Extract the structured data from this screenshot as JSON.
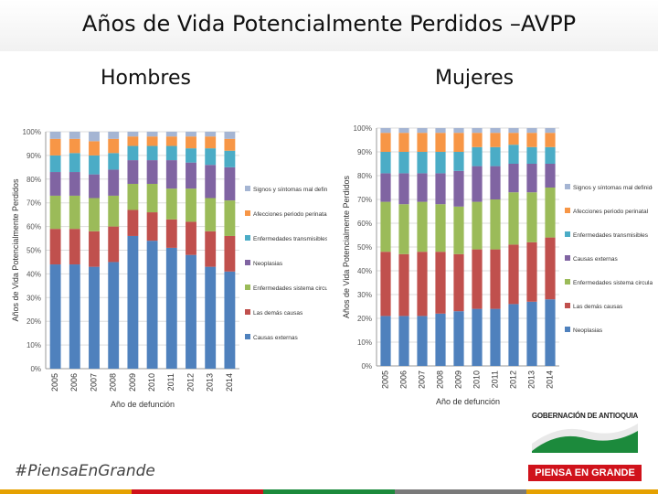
{
  "title": "Años de Vida Potencialmente Perdidos –AVPP",
  "panels": {
    "hombres": "Hombres",
    "mujeres": "Mujeres"
  },
  "footer": {
    "hashtag": "#PiensaEnGrande",
    "logo_top": "GOBERNACIÓN DE ANTIOQUIA",
    "logo_bottom": "PIENSA EN GRANDE"
  },
  "colors": {
    "series": [
      "#4f81bd",
      "#c0504d",
      "#9bbb59",
      "#8064a2",
      "#4bacc6",
      "#f79646",
      "#a5b5d3"
    ],
    "stripe": [
      "#e5a100",
      "#d0121b",
      "#1c8a3c",
      "#7a7a7a",
      "#e5a100"
    ]
  },
  "chart_data": [
    {
      "type": "bar",
      "stacked": true,
      "ylabel": "Años de Vida Potencialmente Perdidos",
      "xlabel": "Año de defunción",
      "yticks": [
        "0%",
        "10%",
        "20%",
        "30%",
        "40%",
        "50%",
        "60%",
        "70%",
        "80%",
        "90%",
        "100%"
      ],
      "ylim": [
        0,
        100
      ],
      "legend_position": "right",
      "categories": [
        "2005",
        "2006",
        "2007",
        "2008",
        "2009",
        "2010",
        "2011",
        "2012",
        "2013",
        "2014"
      ],
      "series": [
        {
          "name": "Causas externas",
          "values": [
            44,
            44,
            43,
            45,
            56,
            54,
            51,
            48,
            43,
            41
          ]
        },
        {
          "name": "Las demás causas",
          "values": [
            15,
            15,
            15,
            15,
            11,
            12,
            12,
            14,
            15,
            15
          ]
        },
        {
          "name": "Enfermedades sistema circulatorio",
          "values": [
            14,
            14,
            14,
            13,
            11,
            12,
            13,
            14,
            14,
            15
          ]
        },
        {
          "name": "Neoplasias",
          "values": [
            10,
            10,
            10,
            11,
            10,
            10,
            12,
            11,
            14,
            14
          ]
        },
        {
          "name": "Enfermedades transmisibles",
          "values": [
            7,
            8,
            8,
            7,
            6,
            6,
            6,
            6,
            7,
            7
          ]
        },
        {
          "name": "Afecciones periodo perinatal",
          "values": [
            7,
            6,
            6,
            6,
            4,
            4,
            4,
            5,
            5,
            5
          ]
        },
        {
          "name": "Signos y síntomas mal definidos",
          "values": [
            3,
            3,
            4,
            3,
            2,
            2,
            2,
            2,
            2,
            3
          ]
        }
      ]
    },
    {
      "type": "bar",
      "stacked": true,
      "ylabel": "Años de Vida Potencialmente Perdidos",
      "xlabel": "Año de defunción",
      "yticks": [
        "0%",
        "10%",
        "20%",
        "30%",
        "40%",
        "50%",
        "60%",
        "70%",
        "80%",
        "90%",
        "100%"
      ],
      "ylim": [
        0,
        100
      ],
      "legend_position": "right",
      "categories": [
        "2005",
        "2006",
        "2007",
        "2008",
        "2009",
        "2010",
        "2011",
        "2012",
        "2013",
        "2014"
      ],
      "series": [
        {
          "name": "Neoplasias",
          "values": [
            21,
            21,
            21,
            22,
            23,
            24,
            24,
            26,
            27,
            28
          ]
        },
        {
          "name": "Las demás causas",
          "values": [
            27,
            26,
            27,
            26,
            24,
            25,
            25,
            25,
            25,
            26
          ]
        },
        {
          "name": "Enfermedades sistema circulatorio",
          "values": [
            21,
            21,
            21,
            20,
            20,
            20,
            21,
            22,
            21,
            21
          ]
        },
        {
          "name": "Causas externas",
          "values": [
            12,
            13,
            12,
            13,
            15,
            15,
            14,
            12,
            12,
            10
          ]
        },
        {
          "name": "Enfermedades transmisibles",
          "values": [
            9,
            9,
            9,
            9,
            8,
            8,
            8,
            8,
            7,
            7
          ]
        },
        {
          "name": "Afecciones periodo perinatal",
          "values": [
            8,
            8,
            8,
            8,
            8,
            6,
            6,
            5,
            6,
            6
          ]
        },
        {
          "name": "Signos y síntomas mal definidos",
          "values": [
            2,
            2,
            2,
            2,
            2,
            2,
            2,
            2,
            2,
            2
          ]
        }
      ]
    }
  ]
}
